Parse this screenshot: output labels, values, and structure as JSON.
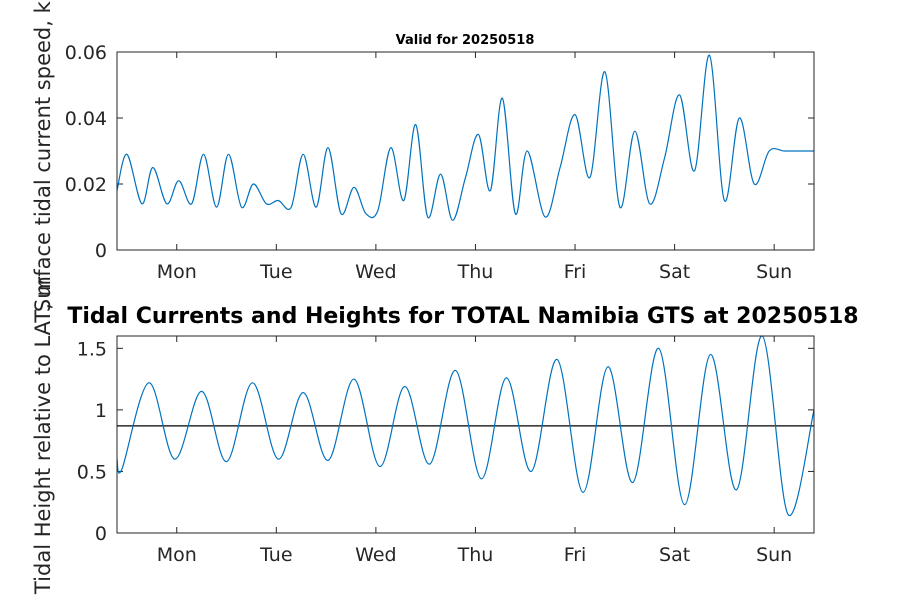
{
  "chart_data": [
    {
      "type": "line",
      "title": "Valid for 20250518",
      "ylabel": "Surface tidal current speed, kn",
      "xlabel": "",
      "x_tick_labels": [
        "Mon",
        "Tue",
        "Wed",
        "Thu",
        "Fri",
        "Sat",
        "Sun"
      ],
      "x_tick_positions": [
        0.6,
        1.6,
        2.6,
        3.6,
        4.6,
        5.6,
        6.6
      ],
      "xlim": [
        0.0,
        7.0
      ],
      "ylim": [
        0,
        0.06
      ],
      "y_ticks": [
        0,
        0.02,
        0.04,
        0.06
      ],
      "y_tick_labels": [
        "0",
        "0.02",
        "0.04",
        "0.06"
      ],
      "grid": false,
      "series_color": "#0072BD",
      "series": [
        {
          "x": [
            0.0,
            0.1,
            0.25,
            0.36,
            0.5,
            0.62,
            0.75,
            0.87,
            1.0,
            1.12,
            1.25,
            1.37,
            1.5,
            1.62,
            1.75,
            1.87,
            2.0,
            2.12,
            2.25,
            2.38,
            2.5,
            2.62,
            2.75,
            2.88,
            3.0,
            3.12,
            3.25,
            3.37,
            3.5,
            3.63,
            3.75,
            3.87,
            4.0,
            4.12,
            4.3,
            4.45,
            4.6,
            4.75,
            4.9,
            5.05,
            5.2,
            5.35,
            5.5,
            5.65,
            5.8,
            5.95,
            6.1,
            6.25,
            6.4,
            6.55,
            6.7,
            6.83,
            6.95,
            7.0
          ],
          "y": [
            0.018,
            0.029,
            0.014,
            0.025,
            0.014,
            0.021,
            0.014,
            0.029,
            0.013,
            0.029,
            0.013,
            0.02,
            0.014,
            0.015,
            0.013,
            0.029,
            0.013,
            0.031,
            0.011,
            0.019,
            0.011,
            0.012,
            0.031,
            0.015,
            0.038,
            0.01,
            0.023,
            0.009,
            0.022,
            0.035,
            0.018,
            0.046,
            0.011,
            0.03,
            0.01,
            0.025,
            0.041,
            0.022,
            0.054,
            0.013,
            0.036,
            0.014,
            0.028,
            0.047,
            0.024,
            0.059,
            0.015,
            0.04,
            0.02,
            0.03,
            0.03,
            0.03,
            0.03,
            0.03
          ]
        }
      ]
    },
    {
      "type": "line",
      "title": "Tidal Currents and Heights for TOTAL Namibia GTS at 20250518",
      "ylabel": "Tidal Height relative to LAT, m",
      "xlabel": "",
      "x_tick_labels": [
        "Mon",
        "Tue",
        "Wed",
        "Thu",
        "Fri",
        "Sat",
        "Sun"
      ],
      "x_tick_positions": [
        0.6,
        1.6,
        2.6,
        3.6,
        4.6,
        5.6,
        6.6
      ],
      "xlim": [
        0.0,
        7.0
      ],
      "ylim": [
        0,
        1.6
      ],
      "y_ticks": [
        0,
        0.5,
        1,
        1.5
      ],
      "y_tick_labels": [
        "0",
        "0.5",
        "1",
        "1.5"
      ],
      "grid": false,
      "reference_line": 0.87,
      "series_color": "#0072BD",
      "series": [
        {
          "x": [
            0.0,
            0.05,
            0.32,
            0.58,
            0.85,
            1.1,
            1.36,
            1.62,
            1.87,
            2.12,
            2.38,
            2.64,
            2.89,
            3.14,
            3.4,
            3.66,
            3.91,
            4.16,
            4.42,
            4.68,
            4.93,
            5.18,
            5.44,
            5.7,
            5.96,
            6.22,
            6.48,
            6.74,
            7.0
          ],
          "y": [
            0.6,
            0.52,
            1.22,
            0.6,
            1.15,
            0.58,
            1.22,
            0.6,
            1.14,
            0.59,
            1.25,
            0.54,
            1.19,
            0.56,
            1.32,
            0.44,
            1.26,
            0.5,
            1.41,
            0.33,
            1.35,
            0.41,
            1.5,
            0.23,
            1.45,
            0.35,
            1.6,
            0.15,
            1.0
          ]
        }
      ]
    }
  ]
}
